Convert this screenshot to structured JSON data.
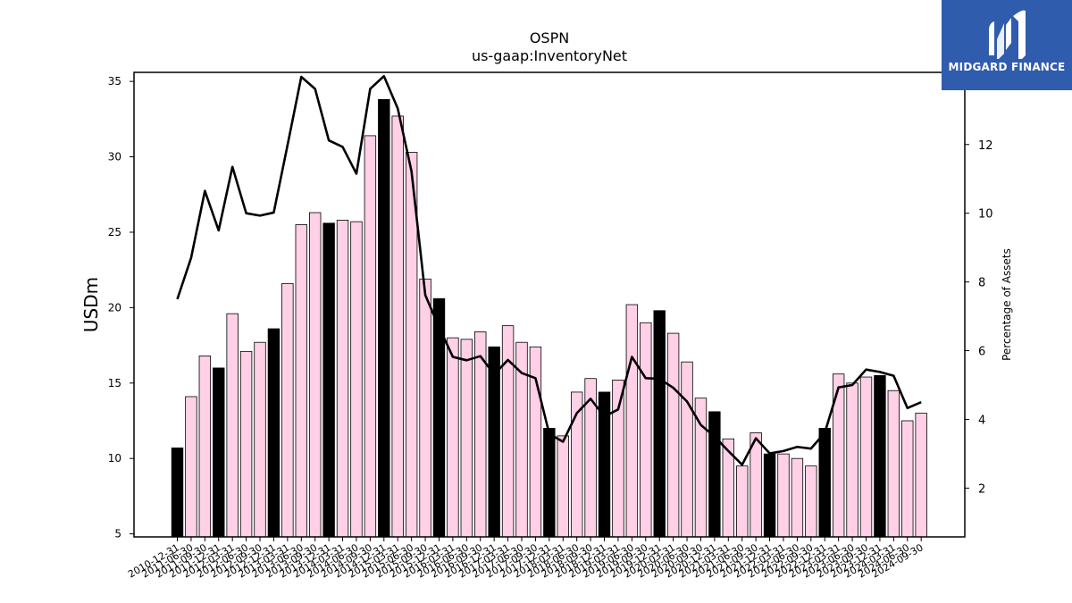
{
  "chart_data": {
    "type": "bar",
    "title": "OSPN",
    "subtitle": "us-gaap:InventoryNet",
    "ylabel": "USDm",
    "y2label": "Percentage of Assets",
    "ylim": [
      4.8,
      35.6
    ],
    "y2lim": [
      0.58,
      14.1
    ],
    "yticks": [
      5,
      10,
      15,
      20,
      25,
      30,
      35
    ],
    "y2ticks": [
      2,
      4,
      6,
      8,
      10,
      12
    ],
    "categories": [
      "2010-12-31",
      "2011-06-30",
      "2011-09-30",
      "2011-12-31",
      "2012-03-31",
      "2012-06-30",
      "2012-09-30",
      "2012-12-31",
      "2013-03-31",
      "2013-06-30",
      "2013-09-30",
      "2013-12-31",
      "2014-03-31",
      "2014-06-30",
      "2014-09-30",
      "2014-12-31",
      "2015-03-31",
      "2015-06-30",
      "2015-09-30",
      "2015-12-31",
      "2016-03-31",
      "2016-06-30",
      "2016-09-30",
      "2016-12-31",
      "2017-03-31",
      "2017-06-30",
      "2017-09-30",
      "2017-12-31",
      "2018-03-31",
      "2018-06-30",
      "2018-09-30",
      "2018-12-31",
      "2019-03-31",
      "2019-06-30",
      "2019-09-30",
      "2019-12-31",
      "2020-03-31",
      "2020-06-30",
      "2020-09-30",
      "2020-12-31",
      "2021-03-31",
      "2021-06-30",
      "2021-09-30",
      "2021-12-31",
      "2022-03-31",
      "2022-06-30",
      "2022-09-30",
      "2022-12-31",
      "2023-03-31",
      "2023-06-30",
      "2023-09-30",
      "2023-12-31",
      "2024-03-31",
      "2024-06-30",
      "2024-09-30"
    ],
    "series": [
      {
        "kind": "bar",
        "values": [
          10.7,
          14.1,
          16.8,
          16.0,
          19.6,
          17.1,
          17.7,
          18.6,
          21.6,
          25.5,
          26.3,
          25.6,
          25.8,
          25.7,
          31.4,
          33.8,
          32.7,
          30.3,
          21.9,
          20.6,
          18.0,
          17.9,
          18.4,
          17.4,
          18.8,
          17.7,
          17.4,
          12.0,
          11.5,
          14.4,
          15.3,
          14.4,
          15.2,
          20.2,
          19.0,
          19.8,
          18.3,
          16.4,
          14.0,
          13.1,
          11.3,
          9.5,
          11.7,
          10.3,
          10.3,
          10.0,
          9.5,
          12.0,
          15.6,
          15.0,
          15.4,
          15.5,
          14.5,
          12.5,
          13.0
        ],
        "colors": {
          "quarter": "#ffd0e6",
          "year_end": "#000000",
          "edge": "#000000"
        }
      },
      {
        "kind": "line",
        "axis": "right",
        "color": "#000000",
        "values": [
          7.5,
          8.7,
          10.65,
          9.5,
          11.35,
          10.0,
          9.93,
          10.02,
          11.98,
          13.97,
          13.62,
          12.12,
          11.93,
          11.15,
          13.62,
          13.99,
          13.05,
          11.22,
          7.62,
          6.68,
          5.82,
          5.72,
          5.84,
          5.31,
          5.73,
          5.35,
          5.2,
          3.58,
          3.35,
          4.18,
          4.6,
          4.08,
          4.29,
          5.82,
          5.2,
          5.18,
          4.92,
          4.52,
          3.84,
          3.5,
          3.08,
          2.68,
          3.45,
          3.01,
          3.08,
          3.2,
          3.15,
          3.61,
          4.93,
          5.0,
          5.45,
          5.38,
          5.27,
          4.33,
          4.5
        ]
      }
    ],
    "legend": "none",
    "grid": false
  },
  "logo": {
    "name": "MIDGARD FINANCE",
    "bg_color": "#2f5cad",
    "text_color": "#ffffff"
  }
}
